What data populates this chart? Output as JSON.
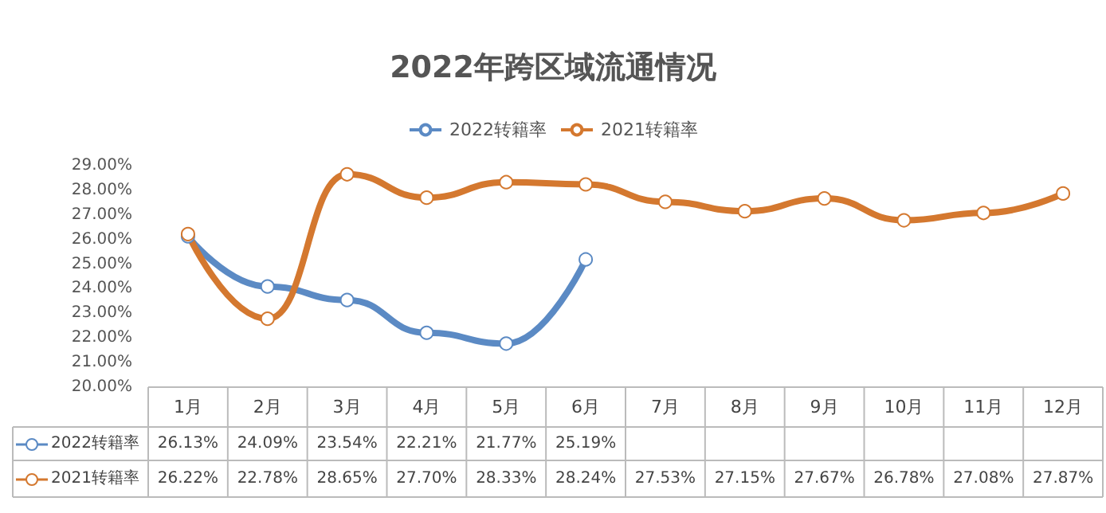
{
  "chart_data": {
    "type": "line",
    "title": "2022年跨区域流通情况",
    "categories": [
      "1月",
      "2月",
      "3月",
      "4月",
      "5月",
      "6月",
      "7月",
      "8月",
      "9月",
      "10月",
      "11月",
      "12月"
    ],
    "series": [
      {
        "name": "2022转籍率",
        "color": "#5b8ac4",
        "values": [
          26.13,
          24.09,
          23.54,
          22.21,
          21.77,
          25.19,
          null,
          null,
          null,
          null,
          null,
          null
        ],
        "value_labels": [
          "26.13%",
          "24.09%",
          "23.54%",
          "22.21%",
          "21.77%",
          "25.19%",
          null,
          null,
          null,
          null,
          null,
          null
        ]
      },
      {
        "name": "2021转籍率",
        "color": "#d4782f",
        "values": [
          26.22,
          22.78,
          28.65,
          27.7,
          28.33,
          28.24,
          27.53,
          27.15,
          27.67,
          26.78,
          27.08,
          27.87
        ],
        "value_labels": [
          "26.22%",
          "22.78%",
          "28.65%",
          "27.70%",
          "28.33%",
          "28.24%",
          "27.53%",
          "27.15%",
          "27.67%",
          "26.78%",
          "27.08%",
          "27.87%"
        ]
      }
    ],
    "ylim": [
      20,
      29
    ],
    "yticks": [
      {
        "value": 20,
        "label": "20.00%"
      },
      {
        "value": 21,
        "label": "21.00%"
      },
      {
        "value": 22,
        "label": "22.00%"
      },
      {
        "value": 23,
        "label": "23.00%"
      },
      {
        "value": 24,
        "label": "24.00%"
      },
      {
        "value": 25,
        "label": "25.00%"
      },
      {
        "value": 26,
        "label": "26.00%"
      },
      {
        "value": 27,
        "label": "27.00%"
      },
      {
        "value": 28,
        "label": "28.00%"
      },
      {
        "value": 29,
        "label": "29.00%"
      }
    ],
    "grid": false,
    "legend": "top",
    "marker": "circle"
  }
}
